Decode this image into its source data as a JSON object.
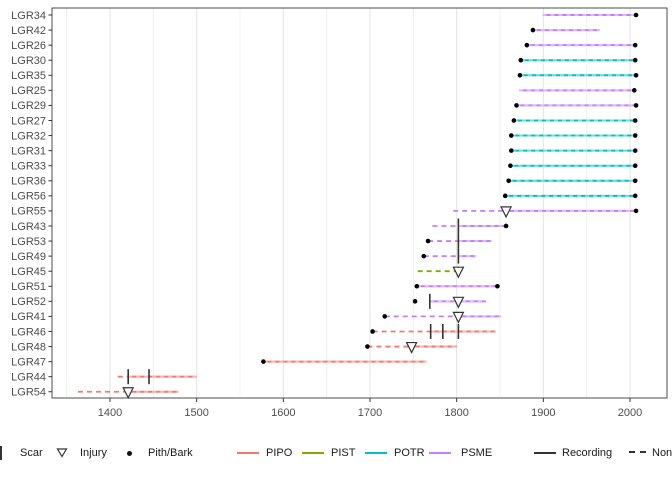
{
  "legend": {
    "scar_label": "Scar",
    "injury_label": "Injury",
    "pith_label": "Pith/Bark",
    "species": [
      {
        "label": "PIPO",
        "color": "#F8766D"
      },
      {
        "label": "PIST",
        "color": "#7CAE00"
      },
      {
        "label": "POTR",
        "color": "#00BFC4"
      },
      {
        "label": "PSME",
        "color": "#C77CFF"
      }
    ],
    "recording_label": "Recording",
    "nonrecording_label": "Non-recording"
  },
  "colors": {
    "recording_key": "#333333",
    "marker": "#333333",
    "pith_bark_dot": "#000000",
    "panel_border": "#4d4d4d",
    "tick": "#333333",
    "tick_label": "#4d4d4d",
    "grid_major": "#e3e3e3",
    "grid_minor": "#f0f0f0"
  },
  "chart_data": {
    "type": "fire-history-demography",
    "title": "",
    "xlabel": "",
    "ylabel": "",
    "x_axis": {
      "ticks": [
        1400,
        1500,
        1600,
        1700,
        1800,
        1900,
        2000
      ],
      "minor_ticks": [
        1350,
        1450,
        1550,
        1650,
        1750,
        1850,
        1950
      ],
      "range": [
        1333,
        2042
      ]
    },
    "species_colors": {
      "PIPO": "#F8766D",
      "PIST": "#7CAE00",
      "POTR": "#00BFC4",
      "PSME": "#C77CFF"
    },
    "series": [
      {
        "name": "LGR34",
        "species": "PSME",
        "segments": [
          {
            "type": "recording",
            "from": 1899,
            "to": 2007
          }
        ],
        "markers": [
          {
            "type": "bark",
            "year": 2007
          }
        ]
      },
      {
        "name": "LGR42",
        "species": "PSME",
        "segments": [
          {
            "type": "recording",
            "from": 1888,
            "to": 1965
          }
        ],
        "markers": [
          {
            "type": "pith",
            "year": 1888
          }
        ]
      },
      {
        "name": "LGR26",
        "species": "PSME",
        "segments": [
          {
            "type": "recording",
            "from": 1881,
            "to": 2006
          }
        ],
        "markers": [
          {
            "type": "pith",
            "year": 1881
          },
          {
            "type": "bark",
            "year": 2006
          }
        ]
      },
      {
        "name": "LGR30",
        "species": "POTR",
        "segments": [
          {
            "type": "recording",
            "from": 1874,
            "to": 2006
          }
        ],
        "markers": [
          {
            "type": "pith",
            "year": 1874
          },
          {
            "type": "bark",
            "year": 2006
          }
        ]
      },
      {
        "name": "LGR35",
        "species": "POTR",
        "segments": [
          {
            "type": "recording",
            "from": 1873,
            "to": 2007
          }
        ],
        "markers": [
          {
            "type": "pith",
            "year": 1873
          },
          {
            "type": "bark",
            "year": 2007
          }
        ]
      },
      {
        "name": "LGR25",
        "species": "PSME",
        "segments": [
          {
            "type": "recording",
            "from": 1872,
            "to": 2005
          }
        ],
        "markers": [
          {
            "type": "bark",
            "year": 2005
          }
        ]
      },
      {
        "name": "LGR29",
        "species": "PSME",
        "segments": [
          {
            "type": "recording",
            "from": 1869,
            "to": 2007
          }
        ],
        "markers": [
          {
            "type": "pith",
            "year": 1869
          },
          {
            "type": "bark",
            "year": 2007
          }
        ]
      },
      {
        "name": "LGR27",
        "species": "POTR",
        "segments": [
          {
            "type": "recording",
            "from": 1866,
            "to": 2006
          }
        ],
        "markers": [
          {
            "type": "pith",
            "year": 1866
          },
          {
            "type": "bark",
            "year": 2006
          }
        ]
      },
      {
        "name": "LGR32",
        "species": "POTR",
        "segments": [
          {
            "type": "recording",
            "from": 1863,
            "to": 2006
          }
        ],
        "markers": [
          {
            "type": "pith",
            "year": 1863
          },
          {
            "type": "bark",
            "year": 2006
          }
        ]
      },
      {
        "name": "LGR31",
        "species": "POTR",
        "segments": [
          {
            "type": "recording",
            "from": 1863,
            "to": 2006
          }
        ],
        "markers": [
          {
            "type": "pith",
            "year": 1863
          },
          {
            "type": "bark",
            "year": 2006
          }
        ]
      },
      {
        "name": "LGR33",
        "species": "POTR",
        "segments": [
          {
            "type": "recording",
            "from": 1862,
            "to": 2006
          }
        ],
        "markers": [
          {
            "type": "pith",
            "year": 1862
          },
          {
            "type": "bark",
            "year": 2006
          }
        ]
      },
      {
        "name": "LGR36",
        "species": "POTR",
        "segments": [
          {
            "type": "recording",
            "from": 1860,
            "to": 2006
          }
        ],
        "markers": [
          {
            "type": "pith",
            "year": 1860
          },
          {
            "type": "bark",
            "year": 2006
          }
        ]
      },
      {
        "name": "LGR56",
        "species": "POTR",
        "segments": [
          {
            "type": "recording",
            "from": 1856,
            "to": 2006
          }
        ],
        "markers": [
          {
            "type": "pith",
            "year": 1856
          },
          {
            "type": "bark",
            "year": 2006
          }
        ]
      },
      {
        "name": "LGR55",
        "species": "PSME",
        "segments": [
          {
            "type": "non-recording",
            "from": 1796,
            "to": 1857
          },
          {
            "type": "recording",
            "from": 1857,
            "to": 2007
          }
        ],
        "markers": [
          {
            "type": "injury",
            "year": 1857
          },
          {
            "type": "bark",
            "year": 2007
          }
        ]
      },
      {
        "name": "LGR43",
        "species": "PSME",
        "segments": [
          {
            "type": "non-recording",
            "from": 1772,
            "to": 1802
          },
          {
            "type": "recording",
            "from": 1802,
            "to": 1857
          }
        ],
        "markers": [
          {
            "type": "scar",
            "year": 1802
          },
          {
            "type": "bark",
            "year": 1857
          }
        ]
      },
      {
        "name": "LGR53",
        "species": "PSME",
        "segments": [
          {
            "type": "non-recording",
            "from": 1767,
            "to": 1802
          },
          {
            "type": "recording",
            "from": 1802,
            "to": 1840
          }
        ],
        "markers": [
          {
            "type": "pith",
            "year": 1767
          },
          {
            "type": "scar",
            "year": 1802
          }
        ]
      },
      {
        "name": "LGR49",
        "species": "PSME",
        "segments": [
          {
            "type": "non-recording",
            "from": 1762,
            "to": 1802
          },
          {
            "type": "recording",
            "from": 1802,
            "to": 1822
          }
        ],
        "markers": [
          {
            "type": "pith",
            "year": 1762
          },
          {
            "type": "scar",
            "year": 1802
          }
        ]
      },
      {
        "name": "LGR45",
        "species": "PIST",
        "segments": [
          {
            "type": "non-recording",
            "from": 1755,
            "to": 1802
          }
        ],
        "markers": [
          {
            "type": "injury",
            "year": 1802
          }
        ]
      },
      {
        "name": "LGR51",
        "species": "PSME",
        "segments": [
          {
            "type": "recording",
            "from": 1754,
            "to": 1847
          }
        ],
        "markers": [
          {
            "type": "pith",
            "year": 1754
          },
          {
            "type": "bark",
            "year": 1847
          }
        ]
      },
      {
        "name": "LGR52",
        "species": "PSME",
        "segments": [
          {
            "type": "recording",
            "from": 1769,
            "to": 1834
          }
        ],
        "markers": [
          {
            "type": "pith",
            "year": 1752
          },
          {
            "type": "scar",
            "year": 1769
          },
          {
            "type": "injury",
            "year": 1802
          }
        ]
      },
      {
        "name": "LGR41",
        "species": "PSME",
        "segments": [
          {
            "type": "non-recording",
            "from": 1717,
            "to": 1802
          },
          {
            "type": "recording",
            "from": 1802,
            "to": 1851
          }
        ],
        "markers": [
          {
            "type": "pith",
            "year": 1717
          },
          {
            "type": "injury",
            "year": 1802
          }
        ]
      },
      {
        "name": "LGR46",
        "species": "PIPO",
        "segments": [
          {
            "type": "non-recording",
            "from": 1703,
            "to": 1770
          },
          {
            "type": "recording",
            "from": 1770,
            "to": 1845
          }
        ],
        "markers": [
          {
            "type": "pith",
            "year": 1703
          },
          {
            "type": "scar",
            "year": 1770
          },
          {
            "type": "scar",
            "year": 1784
          },
          {
            "type": "scar",
            "year": 1802
          }
        ]
      },
      {
        "name": "LGR48",
        "species": "PIPO",
        "segments": [
          {
            "type": "non-recording",
            "from": 1697,
            "to": 1748
          },
          {
            "type": "recording",
            "from": 1748,
            "to": 1800
          }
        ],
        "markers": [
          {
            "type": "pith",
            "year": 1697
          },
          {
            "type": "injury",
            "year": 1748
          }
        ]
      },
      {
        "name": "LGR47",
        "species": "PIPO",
        "segments": [
          {
            "type": "recording",
            "from": 1577,
            "to": 1765
          }
        ],
        "markers": [
          {
            "type": "pith",
            "year": 1577
          }
        ]
      },
      {
        "name": "LGR44",
        "species": "PIPO",
        "segments": [
          {
            "type": "non-recording",
            "from": 1409,
            "to": 1421
          },
          {
            "type": "recording",
            "from": 1421,
            "to": 1500
          }
        ],
        "markers": [
          {
            "type": "scar",
            "year": 1421
          },
          {
            "type": "scar",
            "year": 1445
          }
        ]
      },
      {
        "name": "LGR54",
        "species": "PIPO",
        "segments": [
          {
            "type": "non-recording",
            "from": 1363,
            "to": 1421
          },
          {
            "type": "recording",
            "from": 1421,
            "to": 1479
          }
        ],
        "markers": [
          {
            "type": "injury",
            "year": 1421
          }
        ]
      }
    ]
  }
}
